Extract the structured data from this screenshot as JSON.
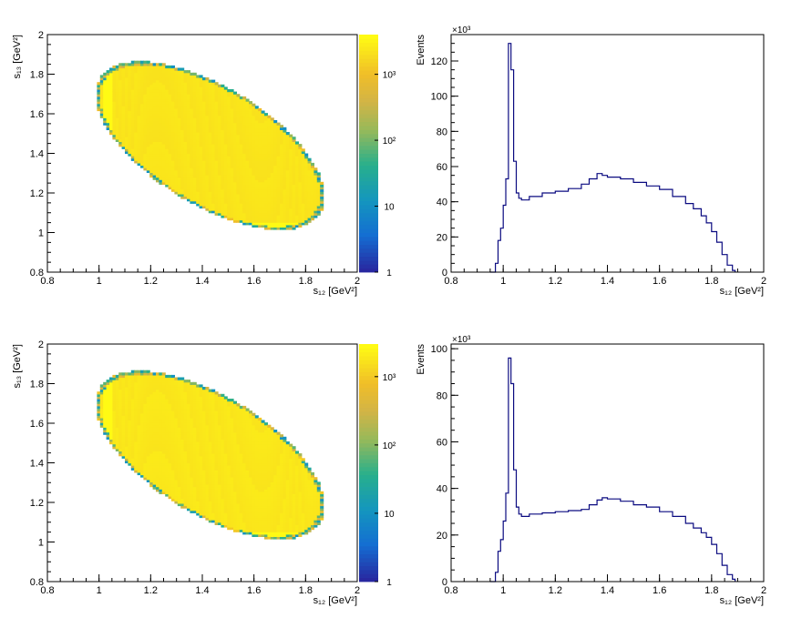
{
  "chart_data": [
    {
      "type": "heatmap",
      "id": "dalitz-top",
      "xlabel": "s₁₂ [GeV²]",
      "ylabel": "s₁₃ [GeV²]",
      "xlim": [
        0.8,
        2.0
      ],
      "ylim": [
        0.8,
        2.0
      ],
      "x_ticks": [
        "0.8",
        "1",
        "1.2",
        "1.4",
        "1.6",
        "1.8",
        "2"
      ],
      "y_ticks": [
        "0.8",
        "1",
        "1.2",
        "1.4",
        "1.6",
        "1.8",
        "2"
      ],
      "colorbar": {
        "scale": "log",
        "range": [
          1,
          4000
        ],
        "ticks": [
          "1",
          "10",
          "10²",
          "10³"
        ]
      },
      "region": {
        "shape": "ellipse",
        "center": [
          1.43,
          1.44
        ],
        "semi_major": 0.55,
        "semi_minor": 0.27,
        "angle_deg": -43
      },
      "fill_level": 2500,
      "bands": [
        {
          "axis": "x",
          "at": 1.035,
          "level": 4000
        },
        {
          "axis": "y",
          "at": 1.035,
          "level": 4000
        }
      ],
      "grid": false
    },
    {
      "type": "line",
      "id": "proj-top",
      "xlabel": "s₁₂ [GeV²]",
      "ylabel": "Events",
      "multiplier": "×10³",
      "xlim": [
        0.8,
        2.0
      ],
      "ylim": [
        0,
        135
      ],
      "x_ticks": [
        "0.8",
        "1",
        "1.2",
        "1.4",
        "1.6",
        "1.8",
        "2"
      ],
      "y_ticks": [
        "0",
        "20",
        "40",
        "60",
        "80",
        "100",
        "120"
      ],
      "x": [
        0.95,
        0.97,
        0.98,
        0.99,
        1.0,
        1.01,
        1.02,
        1.03,
        1.04,
        1.05,
        1.06,
        1.07,
        1.08,
        1.1,
        1.15,
        1.2,
        1.25,
        1.3,
        1.33,
        1.36,
        1.38,
        1.4,
        1.45,
        1.5,
        1.55,
        1.6,
        1.65,
        1.7,
        1.73,
        1.76,
        1.78,
        1.8,
        1.82,
        1.84,
        1.86,
        1.88,
        1.89
      ],
      "values": [
        0,
        5,
        18,
        25,
        38,
        53,
        130,
        115,
        63,
        45,
        42,
        41,
        41,
        43,
        45,
        46,
        47.5,
        50,
        53,
        56,
        55,
        54,
        53,
        51,
        49,
        47,
        43,
        39,
        36,
        32,
        28,
        23,
        17,
        10,
        4,
        1,
        0
      ],
      "grid": false
    },
    {
      "type": "heatmap",
      "id": "dalitz-bottom",
      "xlabel": "s₁₂ [GeV²]",
      "ylabel": "s₁₃ [GeV²]",
      "xlim": [
        0.8,
        2.0
      ],
      "ylim": [
        0.8,
        2.0
      ],
      "x_ticks": [
        "0.8",
        "1",
        "1.2",
        "1.4",
        "1.6",
        "1.8",
        "2"
      ],
      "y_ticks": [
        "0.8",
        "1",
        "1.2",
        "1.4",
        "1.6",
        "1.8",
        "2"
      ],
      "colorbar": {
        "scale": "log",
        "range": [
          1,
          3000
        ],
        "ticks": [
          "1",
          "10",
          "10²",
          "10³"
        ]
      },
      "region": {
        "shape": "ellipse",
        "center": [
          1.43,
          1.44
        ],
        "semi_major": 0.55,
        "semi_minor": 0.27,
        "angle_deg": -43
      },
      "fill_level": 2000,
      "bands": [
        {
          "axis": "x",
          "at": 1.035,
          "level": 3000
        },
        {
          "axis": "y",
          "at": 1.035,
          "level": 3000
        }
      ],
      "grid": false
    },
    {
      "type": "line",
      "id": "proj-bottom",
      "xlabel": "s₁₂ [GeV²]",
      "ylabel": "Events",
      "multiplier": "×10³",
      "xlim": [
        0.8,
        2.0
      ],
      "ylim": [
        0,
        102
      ],
      "x_ticks": [
        "0.8",
        "1",
        "1.2",
        "1.4",
        "1.6",
        "1.8",
        "2"
      ],
      "y_ticks": [
        "0",
        "20",
        "40",
        "60",
        "80",
        "100"
      ],
      "x": [
        0.95,
        0.97,
        0.98,
        0.99,
        1.0,
        1.01,
        1.02,
        1.03,
        1.04,
        1.05,
        1.06,
        1.07,
        1.08,
        1.1,
        1.15,
        1.2,
        1.25,
        1.3,
        1.33,
        1.36,
        1.38,
        1.4,
        1.45,
        1.5,
        1.55,
        1.6,
        1.65,
        1.7,
        1.73,
        1.76,
        1.78,
        1.8,
        1.82,
        1.84,
        1.86,
        1.88,
        1.89
      ],
      "values": [
        0,
        4,
        13,
        18,
        26,
        38,
        96,
        85,
        48,
        32,
        29,
        28,
        28,
        29,
        29.5,
        30,
        30.5,
        31,
        33,
        35,
        36,
        35.5,
        34.5,
        33,
        32,
        30,
        28,
        25,
        23,
        21,
        19,
        16,
        12,
        7,
        3,
        1,
        0
      ],
      "grid": false
    }
  ]
}
